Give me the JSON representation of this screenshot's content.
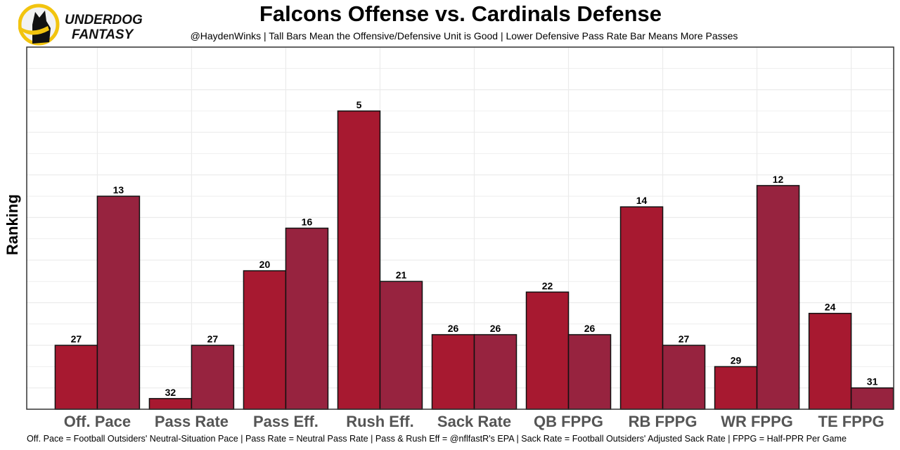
{
  "logo": {
    "line1": "UNDERDOG",
    "line2": "FANTASY",
    "icon": "underdog-dog-icon"
  },
  "colors": {
    "offense": "#A71930",
    "defense": "#97233F",
    "outline": "#111111",
    "grid": "#EBEBEB"
  },
  "chart_data": {
    "type": "bar",
    "title": "Falcons Offense vs. Cardinals Defense",
    "subtitle": "@HaydenWinks | Tall Bars Mean the Offensive/Defensive Unit is Good | Lower Defensive Pass Rate Bar Means More Passes",
    "xlabel": "",
    "ylabel": "Ranking",
    "caption": "Off. Pace = Football Outsiders' Neutral-Situation Pace | Pass Rate = Neutral Pass Rate | Pass & Rush Eff = @nflfastR's EPA | Sack Rate = Football Outsiders' Adjusted Sack Rate | FPPG = Half-PPR Per Game",
    "categories": [
      "Off. Pace",
      "Pass Rate",
      "Pass Eff.",
      "Rush Eff.",
      "Sack Rate",
      "QB FPPG",
      "RB FPPG",
      "WR FPPG",
      "TE FPPG"
    ],
    "series": [
      {
        "name": "Falcons Offense",
        "values": [
          27,
          32,
          20,
          5,
          26,
          22,
          14,
          29,
          24
        ]
      },
      {
        "name": "Cardinals Defense",
        "values": [
          13,
          27,
          16,
          21,
          26,
          26,
          27,
          12,
          31
        ]
      }
    ],
    "value_note": "Bar height represents (33 - ranking); rank 1 is tallest",
    "ylim_rank": [
      33,
      -1
    ],
    "grid": true,
    "legend": "none"
  }
}
